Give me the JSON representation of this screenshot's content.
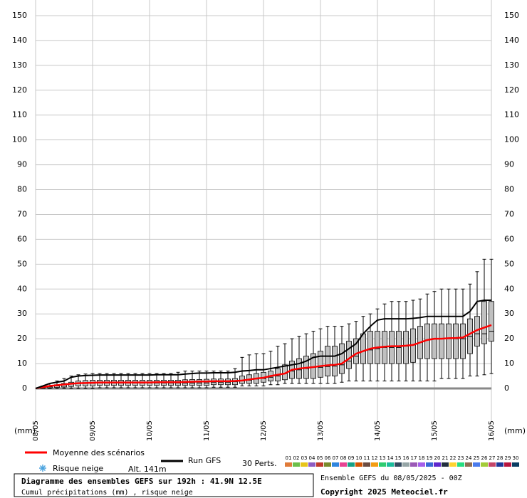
{
  "chart_data": {
    "type": "box",
    "title": "Diagramme des ensembles GEFS sur 192h : 41.9N 12.5E",
    "subtitle": "Cumul précipitations (mm) , risque neige",
    "run_info": "Ensemble GEFS du 08/05/2025 - 00Z",
    "copyright": "Copyright 2025 Meteociel.fr",
    "y_label": "(mm)",
    "snow_label": "Risque neige",
    "altitude": "Alt. 141m",
    "members_label": "30 Perts.",
    "x": [
      3,
      6,
      9,
      12,
      15,
      18,
      21,
      24,
      27,
      30,
      33,
      36,
      39,
      42,
      45,
      48,
      51,
      54,
      57,
      60,
      63,
      66,
      69,
      72,
      75,
      78,
      81,
      84,
      87,
      90,
      93,
      96,
      99,
      102,
      105,
      108,
      111,
      114,
      117,
      120,
      123,
      126,
      129,
      132,
      135,
      138,
      141,
      144,
      147,
      150,
      153,
      156,
      159,
      162,
      165,
      168,
      171,
      174,
      177,
      180,
      183,
      186,
      189,
      192
    ],
    "xlim": [
      0,
      192
    ],
    "xticks": [
      {
        "value": 0,
        "label": "08/05"
      },
      {
        "value": 24,
        "label": "09/05"
      },
      {
        "value": 48,
        "label": "10/05"
      },
      {
        "value": 72,
        "label": "11/05"
      },
      {
        "value": 96,
        "label": "12/05"
      },
      {
        "value": 120,
        "label": "13/05"
      },
      {
        "value": 144,
        "label": "14/05"
      },
      {
        "value": 168,
        "label": "15/05"
      },
      {
        "value": 192,
        "label": "16/05"
      }
    ],
    "ylim": [
      0,
      150
    ],
    "yticks": [
      0,
      10,
      20,
      30,
      40,
      50,
      60,
      70,
      80,
      90,
      100,
      110,
      120,
      130,
      140,
      150
    ],
    "grid": true,
    "box_color": "#c0c0c0",
    "boxes": {
      "min": [
        0,
        0,
        0,
        0,
        0,
        0,
        0,
        0,
        0.3,
        0.3,
        0.3,
        0.3,
        0.3,
        0.3,
        0.3,
        0.3,
        0.3,
        0.3,
        0.3,
        0.3,
        0.3,
        0.3,
        0.3,
        0.3,
        0.5,
        0.5,
        0.5,
        0.5,
        1,
        1,
        1,
        1,
        1.5,
        1.5,
        2,
        2,
        2,
        2,
        2,
        2,
        2,
        2,
        2.5,
        3,
        3,
        3,
        3,
        3,
        3,
        3,
        3,
        3,
        3,
        3,
        3,
        3,
        4,
        4,
        4,
        4,
        5,
        5,
        5.5,
        6
      ],
      "q1": [
        0,
        0.2,
        0.4,
        0.6,
        0.8,
        1,
        1,
        1,
        1.2,
        1.2,
        1.2,
        1.2,
        1.2,
        1.2,
        1.2,
        1.2,
        1.2,
        1.2,
        1.2,
        1.2,
        1.2,
        1.2,
        1.2,
        1.2,
        1.5,
        1.5,
        1.5,
        1.5,
        2,
        2,
        2,
        2.5,
        3,
        3,
        3.5,
        4,
        4,
        4,
        4,
        4.5,
        5,
        5,
        6,
        8,
        10,
        10,
        10,
        10,
        10,
        10,
        10,
        10,
        10.5,
        12,
        12,
        12,
        12,
        12,
        12,
        12,
        14,
        17,
        18,
        19
      ],
      "median": [
        0.2,
        0.6,
        1,
        1.4,
        1.8,
        2,
        2,
        2.1,
        2.2,
        2.2,
        2.2,
        2.2,
        2.2,
        2.2,
        2.2,
        2.2,
        2.2,
        2.2,
        2.2,
        2.2,
        2.2,
        2.2,
        2.2,
        2.2,
        2.5,
        2.5,
        2.5,
        2.7,
        3,
        3.3,
        3.8,
        4,
        4.5,
        5,
        6,
        7,
        7.5,
        8,
        8.5,
        8.5,
        8.8,
        9,
        9.5,
        11,
        13,
        15,
        15.5,
        16,
        16.5,
        16.5,
        16.5,
        17,
        17.5,
        18.5,
        19.5,
        20,
        20,
        20,
        20,
        20,
        21,
        22,
        22,
        23
      ],
      "q3": [
        0.5,
        1,
        1.5,
        2,
        2.5,
        3,
        3.2,
        3.3,
        3.3,
        3.3,
        3.3,
        3.3,
        3.3,
        3.3,
        3.3,
        3.3,
        3.3,
        3.3,
        3.3,
        3.3,
        3.5,
        3.6,
        3.6,
        3.7,
        3.8,
        3.8,
        3.8,
        4,
        5,
        5.5,
        6,
        6.5,
        7,
        8,
        9.5,
        11,
        12,
        13,
        14,
        15,
        17,
        17,
        18,
        19,
        20,
        22,
        23,
        23,
        23,
        23,
        23,
        23,
        24,
        25,
        26,
        26,
        26,
        26,
        26,
        26,
        28,
        29,
        35,
        35
      ],
      "max": [
        1,
        2,
        3,
        4,
        5,
        5.5,
        5.8,
        6,
        6,
        6,
        6,
        6,
        6,
        6,
        6,
        6,
        6,
        6,
        6,
        6.5,
        7,
        7,
        7,
        7,
        7,
        7,
        7,
        8,
        12.5,
        13.5,
        14,
        14,
        15,
        17,
        18,
        20,
        21,
        22,
        23,
        24,
        25,
        25,
        25,
        26,
        27,
        29,
        30,
        32,
        34,
        35,
        35,
        35,
        35.5,
        36,
        38,
        39,
        40,
        40,
        40,
        40,
        42,
        47,
        52,
        52
      ]
    },
    "series": [
      {
        "name": "Moyenne des scénarios",
        "color": "#ff0000",
        "values": [
          0.5,
          1,
          1.3,
          1.6,
          1.9,
          2.1,
          2.2,
          2.3,
          2.4,
          2.4,
          2.4,
          2.4,
          2.4,
          2.4,
          2.4,
          2.4,
          2.5,
          2.5,
          2.5,
          2.5,
          2.6,
          2.7,
          2.8,
          2.8,
          2.9,
          2.9,
          2.9,
          3,
          3.2,
          3.6,
          4,
          4.3,
          5,
          5.5,
          6,
          7.5,
          8,
          8.3,
          8.6,
          9,
          9.3,
          9.5,
          10,
          12,
          14,
          15,
          16,
          16.5,
          16.8,
          17,
          17,
          17.2,
          17.5,
          18.5,
          19.5,
          20,
          20,
          20.2,
          20.3,
          20.5,
          22,
          23.5,
          24.5,
          25.5
        ]
      },
      {
        "name": "Run GFS",
        "color": "#000000",
        "values": [
          1,
          2,
          2.5,
          3,
          4.5,
          5,
          5.2,
          5.3,
          5.4,
          5.4,
          5.4,
          5.4,
          5.4,
          5.4,
          5.4,
          5.4,
          5.5,
          5.5,
          5.5,
          5.5,
          5.8,
          6,
          6.2,
          6.2,
          6.3,
          6.3,
          6.3,
          6.5,
          7,
          7.2,
          7.5,
          7.5,
          8,
          8.5,
          9,
          9.5,
          10,
          11,
          12.5,
          13,
          13,
          13,
          14,
          16,
          18,
          22,
          25,
          27.5,
          28,
          28,
          28,
          28,
          28.2,
          28.5,
          29,
          29,
          29,
          29,
          29,
          29,
          31,
          35,
          35.5,
          35.5
        ]
      }
    ],
    "members": [
      {
        "label": "01",
        "color": "#e07b39"
      },
      {
        "label": "02",
        "color": "#6cbf4a"
      },
      {
        "label": "03",
        "color": "#e8c51a"
      },
      {
        "label": "04",
        "color": "#8e5cc2"
      },
      {
        "label": "05",
        "color": "#c0392b"
      },
      {
        "label": "06",
        "color": "#7a8b2c"
      },
      {
        "label": "07",
        "color": "#2e86de"
      },
      {
        "label": "08",
        "color": "#e84393"
      },
      {
        "label": "09",
        "color": "#16a085"
      },
      {
        "label": "10",
        "color": "#d35400"
      },
      {
        "label": "11",
        "color": "#6d4c41"
      },
      {
        "label": "12",
        "color": "#f39c12"
      },
      {
        "label": "13",
        "color": "#2ecc71"
      },
      {
        "label": "14",
        "color": "#1abc9c"
      },
      {
        "label": "15",
        "color": "#34495e"
      },
      {
        "label": "16",
        "color": "#95a5a6"
      },
      {
        "label": "17",
        "color": "#9b59b6"
      },
      {
        "label": "18",
        "color": "#a55eea"
      },
      {
        "label": "19",
        "color": "#3867d6"
      },
      {
        "label": "20",
        "color": "#5f27cd"
      },
      {
        "label": "21",
        "color": "#222f3e"
      },
      {
        "label": "22",
        "color": "#fed330"
      },
      {
        "label": "23",
        "color": "#26de81"
      },
      {
        "label": "24",
        "color": "#8e6e53"
      },
      {
        "label": "25",
        "color": "#4b7bec"
      },
      {
        "label": "26",
        "color": "#a3cb38"
      },
      {
        "label": "27",
        "color": "#c44569"
      },
      {
        "label": "28",
        "color": "#1e3799"
      },
      {
        "label": "29",
        "color": "#b71540"
      },
      {
        "label": "30",
        "color": "#0a3d62"
      }
    ]
  }
}
